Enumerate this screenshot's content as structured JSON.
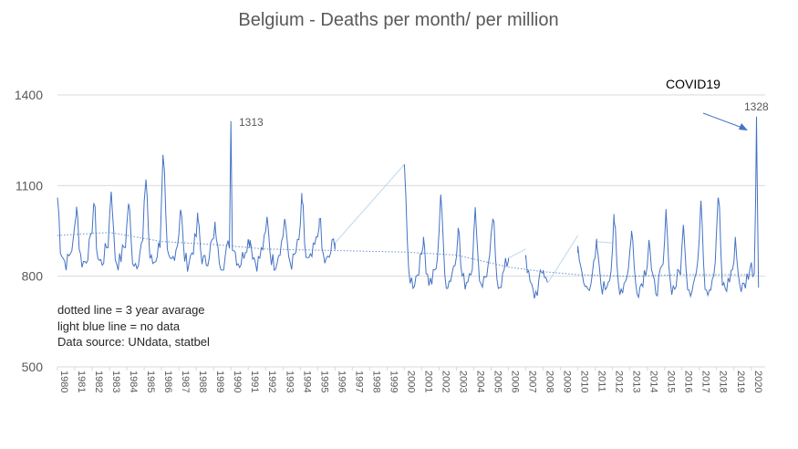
{
  "chart_data": {
    "type": "line",
    "title": "Belgium - Deaths per month/ per million",
    "xlabel": "",
    "ylabel": "",
    "ylim": [
      500,
      1400
    ],
    "yticks": [
      1400,
      1100,
      800,
      500
    ],
    "xlim": [
      1980,
      2020.8
    ],
    "year_ticks": [
      "1980",
      "1981",
      "1982",
      "1983",
      "1984",
      "1985",
      "1986",
      "1987",
      "1988",
      "1989",
      "1990",
      "1991",
      "1992",
      "1993",
      "1994",
      "1995",
      "1996",
      "1997",
      "1998",
      "1999",
      "2000",
      "2001",
      "2002",
      "2003",
      "2004",
      "2005",
      "2006",
      "2007",
      "2008",
      "2009",
      "2010",
      "2011",
      "2012",
      "2013",
      "2014",
      "2015",
      "2016",
      "2017",
      "2018",
      "2019",
      "2020"
    ],
    "grid": "horizontal",
    "legend": "none",
    "colors": {
      "line": "#4472c4",
      "nodata": "#bdd7ee",
      "avg": "#4472c4",
      "grid": "#d9d9d9",
      "text": "#595959"
    },
    "series": [
      {
        "role": "monthly",
        "segments": [
          {
            "start": 1980.0,
            "peaks": [
              [
                1980.0,
                1060
              ],
              [
                1981.1,
                1030
              ],
              [
                1982.1,
                1040
              ],
              [
                1983.1,
                1080
              ],
              [
                1984.1,
                1040
              ],
              [
                1985.1,
                1120
              ],
              [
                1986.1,
                1190
              ],
              [
                1987.1,
                1020
              ],
              [
                1988.1,
                990
              ],
              [
                1989.1,
                960
              ],
              [
                1990.0,
                1313
              ],
              [
                1991.1,
                920
              ],
              [
                1992.1,
                990
              ],
              [
                1993.1,
                990
              ],
              [
                1994.1,
                1050
              ],
              [
                1995.1,
                990
              ],
              [
                1996.0,
                910
              ]
            ],
            "trough": 825,
            "end": 1996.0
          },
          {
            "start": 2000.0,
            "peaks": [
              [
                2000.0,
                1170
              ],
              [
                2001.1,
                930
              ],
              [
                2002.1,
                1070
              ],
              [
                2003.1,
                960
              ],
              [
                2004.1,
                1010
              ],
              [
                2005.1,
                990
              ],
              [
                2006.0,
                860
              ]
            ],
            "trough": 760,
            "end": 2006.0
          },
          {
            "start": 2007.0,
            "peaks": [
              [
                2007.0,
                870
              ],
              [
                2008.0,
                820
              ]
            ],
            "trough": 720,
            "end": 2008.3
          },
          {
            "start": 2010.0,
            "peaks": [
              [
                2010.0,
                900
              ],
              [
                2011.1,
                900
              ],
              [
                2012.1,
                980
              ],
              [
                2013.1,
                950
              ],
              [
                2014.1,
                920
              ],
              [
                2015.1,
                1000
              ],
              [
                2016.1,
                960
              ],
              [
                2017.1,
                1050
              ],
              [
                2018.1,
                1060
              ],
              [
                2019.1,
                910
              ],
              [
                2020.3,
                1328
              ]
            ],
            "trough": 740,
            "end": 2020.45
          }
        ]
      },
      {
        "role": "no-data",
        "lines": [
          [
            [
              1996.0,
              910
            ],
            [
              2000.0,
              1170
            ]
          ],
          [
            [
              2006.0,
              860
            ],
            [
              2007.0,
              890
            ]
          ],
          [
            [
              2008.3,
              780
            ],
            [
              2010.0,
              935
            ]
          ],
          [
            [
              2011.0,
              915
            ],
            [
              2012.0,
              910
            ]
          ]
        ]
      },
      {
        "role": "3-year-average",
        "points": [
          [
            1980,
            935
          ],
          [
            1983,
            945
          ],
          [
            1986,
            915
          ],
          [
            1989,
            905
          ],
          [
            1992,
            890
          ],
          [
            1996,
            885
          ],
          [
            2000,
            880
          ],
          [
            2003,
            870
          ],
          [
            2006,
            830
          ],
          [
            2008,
            815
          ],
          [
            2010,
            805
          ],
          [
            2013,
            800
          ],
          [
            2016,
            805
          ],
          [
            2020,
            805
          ]
        ]
      }
    ],
    "annotations": [
      {
        "text": "1313",
        "x": 1990.0,
        "y": 1313
      },
      {
        "text": "1328",
        "x": 2020.3,
        "y": 1328
      },
      {
        "text": "COVID19"
      }
    ],
    "notes": [
      "dotted line = 3 year avarage",
      "light blue line =  no data",
      "Data source:  UNdata, statbel"
    ]
  }
}
